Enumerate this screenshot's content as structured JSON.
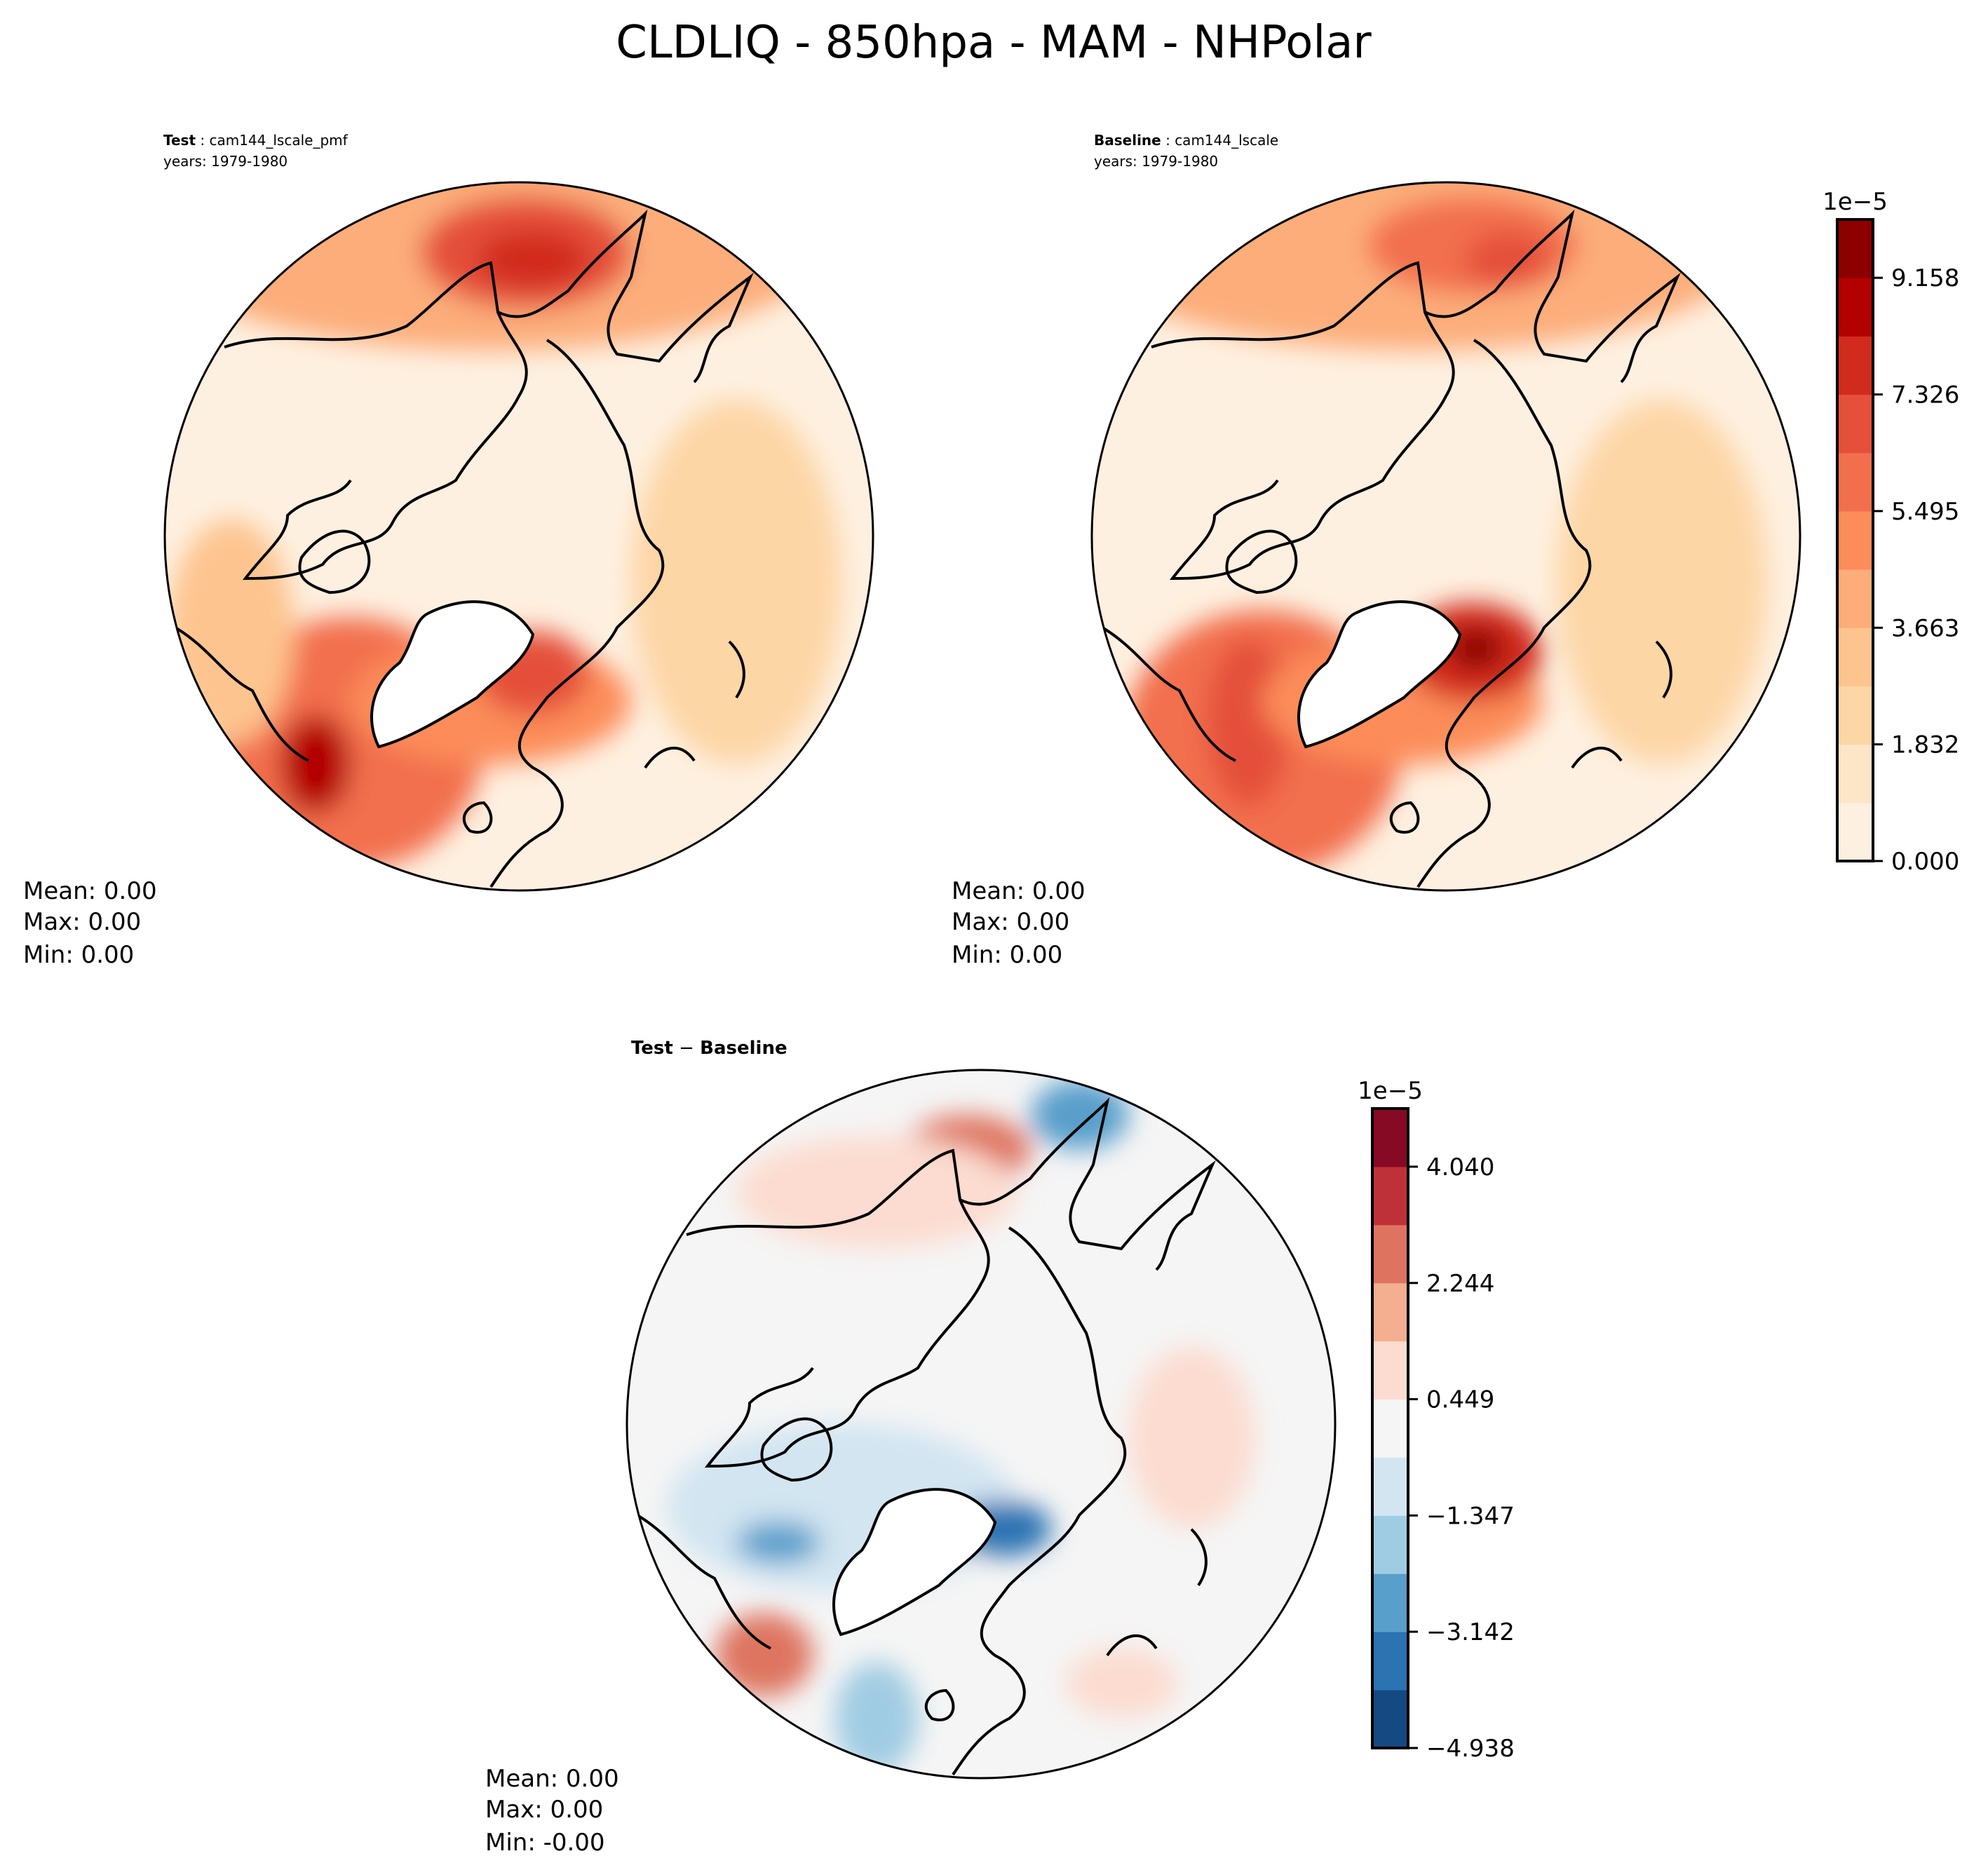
{
  "chart_data": [
    {
      "type": "heatmap",
      "projection": "north-polar-stereographic",
      "title_bold": "Test",
      "title_rest": " : cam144_lscale_pmf",
      "subtitle": "years: 1979-1980",
      "stats": {
        "mean": "Mean:  0.00",
        "max": "Max:  0.00",
        "min": "Min:  0.00"
      },
      "colorbar_ref": 0
    },
    {
      "type": "heatmap",
      "projection": "north-polar-stereographic",
      "title_bold": "Baseline",
      "title_rest": " : cam144_lscale",
      "subtitle": "years: 1979-1980",
      "stats": {
        "mean": "Mean:  0.00",
        "max": "Max:  0.00",
        "min": "Min:  0.00"
      },
      "colorbar_ref": 0
    },
    {
      "type": "heatmap",
      "projection": "north-polar-stereographic",
      "title_bold": "Test",
      "title_rest": " − ",
      "title_bold2": "Baseline",
      "stats": {
        "mean": "Mean:  0.00",
        "max": "Max:  0.00",
        "min": "Min: -0.00"
      },
      "colorbar_ref": 1
    }
  ],
  "figure": {
    "title": "CLDLIQ - 850hpa - MAM - NHPolar"
  },
  "colorbars": [
    {
      "offset_label": "1e−5",
      "range": [
        0.0,
        10.074
      ],
      "tick_labels": [
        "0.000",
        "1.832",
        "3.663",
        "5.495",
        "7.326",
        "9.158"
      ],
      "tick_values": [
        0.0,
        1.832,
        3.663,
        5.495,
        7.326,
        9.158
      ],
      "colors": [
        "#fef0e0",
        "#fde5c7",
        "#fdd6a6",
        "#fdc48f",
        "#fcad7a",
        "#fc8d5a",
        "#f26f4e",
        "#e4503a",
        "#d12b1e",
        "#b30000",
        "#8c0000"
      ]
    },
    {
      "offset_label": "1e−5",
      "range": [
        -4.938,
        4.938
      ],
      "tick_labels": [
        "−4.938",
        "−3.142",
        "−1.347",
        "0.449",
        "2.244",
        "4.040"
      ],
      "tick_values": [
        -4.938,
        -3.142,
        -1.347,
        0.449,
        2.244,
        4.04
      ],
      "colors": [
        "#144a82",
        "#2c73b2",
        "#599fcb",
        "#a0cce3",
        "#d2e5f1",
        "#f5f5f5",
        "#fcdcd0",
        "#f4ae90",
        "#de7460",
        "#bf3139",
        "#870a24"
      ]
    }
  ]
}
